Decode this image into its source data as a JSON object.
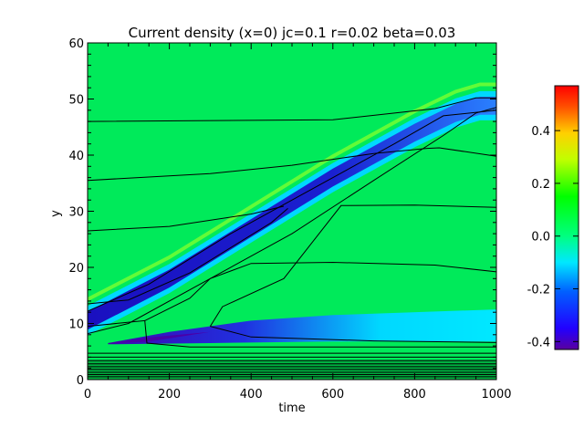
{
  "chart_data": {
    "type": "heatmap",
    "title": "Current density (x=0) jc=0.1 r=0.02 beta=0.03",
    "xlabel": "time",
    "ylabel": "y",
    "xlim": [
      0,
      1000
    ],
    "ylim": [
      0,
      60
    ],
    "x_ticks": [
      "0",
      "200",
      "400",
      "600",
      "800",
      "1000"
    ],
    "y_ticks": [
      "0",
      "10",
      "20",
      "30",
      "40",
      "50",
      "60"
    ],
    "colorbar": {
      "range": [
        -0.43,
        0.57
      ],
      "ticks": [
        "-0.4",
        "-0.2",
        "0.0",
        "0.2",
        "0.4"
      ],
      "colormap": "rainbow"
    },
    "background_value": 0.0,
    "features": [
      {
        "name": "main-current-sheet",
        "value": -0.38,
        "centerline": [
          [
            0,
            10.5
          ],
          [
            200,
            18
          ],
          [
            400,
            27
          ],
          [
            600,
            36
          ],
          [
            800,
            44
          ],
          [
            900,
            47.5
          ],
          [
            960,
            48.8
          ],
          [
            1000,
            48.8
          ]
        ]
      },
      {
        "name": "lower-current-band",
        "value": -0.35,
        "extent": {
          "time": [
            50,
            1000
          ],
          "y": [
            6.5,
            12.5
          ]
        }
      },
      {
        "name": "bottom-layers",
        "value": 0.0,
        "extent": {
          "time": [
            0,
            1000
          ],
          "y": [
            0,
            3.5
          ]
        }
      }
    ],
    "contours_y_at_time_0": [
      46,
      35.5,
      26.5,
      13.5,
      10.5,
      8.2,
      4.7,
      4.0,
      3.4,
      2.8,
      2.3,
      1.8,
      1.3,
      0.9,
      0.5
    ]
  }
}
